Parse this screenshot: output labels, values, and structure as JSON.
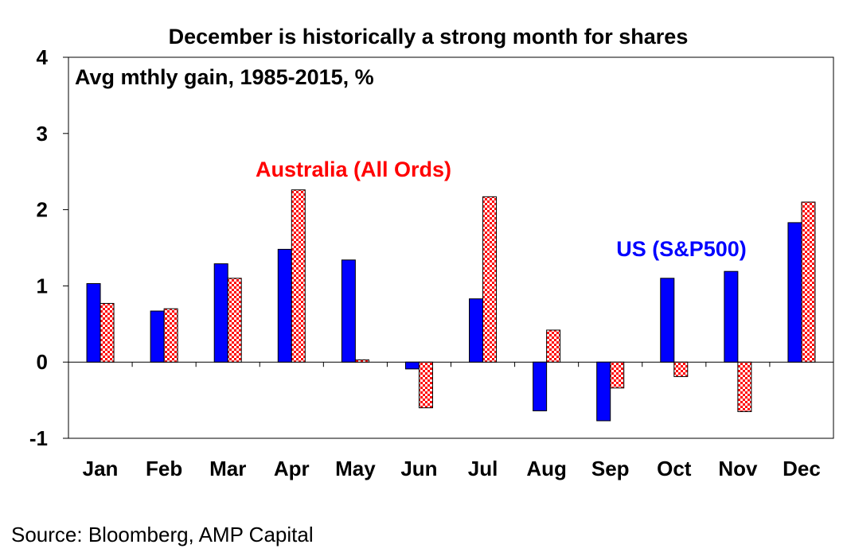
{
  "chart_data": {
    "type": "bar",
    "title": "December is historically a strong month for shares",
    "subtitle": "Avg mthly gain, 1985-2015, %",
    "source": "Source: Bloomberg, AMP Capital",
    "categories": [
      "Jan",
      "Feb",
      "Mar",
      "Apr",
      "May",
      "Jun",
      "Jul",
      "Aug",
      "Sep",
      "Oct",
      "Nov",
      "Dec"
    ],
    "ylim": [
      -1,
      4
    ],
    "yticks": [
      -1,
      0,
      1,
      2,
      3,
      4
    ],
    "grid": false,
    "series": [
      {
        "name": "US (S&P500)",
        "color": "#0000ff",
        "pattern": "solid",
        "values": [
          1.03,
          0.67,
          1.29,
          1.48,
          1.34,
          -0.09,
          0.83,
          -0.64,
          -0.77,
          1.1,
          1.19,
          1.83
        ]
      },
      {
        "name": "Australia (All Ords)",
        "color": "#ff0000",
        "pattern": "checkered",
        "values": [
          0.77,
          0.7,
          1.1,
          2.26,
          0.03,
          -0.6,
          2.17,
          0.42,
          -0.34,
          -0.19,
          -0.65,
          2.1
        ]
      }
    ]
  }
}
